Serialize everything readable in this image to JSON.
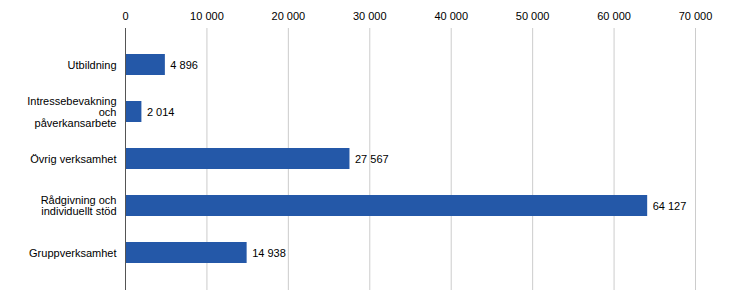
{
  "chart_data": {
    "type": "bar",
    "orientation": "horizontal",
    "categories": [
      "Utbildning",
      "Intressebevakning\noch\npåverkansarbete",
      "Övrig verksamhet",
      "Rådgivning och\nindividuellt stöd",
      "Gruppverksamhet"
    ],
    "values": [
      4896,
      2014,
      27567,
      64127,
      14938
    ],
    "value_labels": [
      "4 896",
      "2 014",
      "27 567",
      "64 127",
      "14 938"
    ],
    "data_labels": true,
    "color": "#2458a8",
    "xlim": [
      0,
      70000
    ],
    "xticks": [
      0,
      {
        "value": 10000,
        "label": "10 000"
      },
      {
        "value": 20000,
        "label": "20 000"
      },
      {
        "value": 30000,
        "label": "30 000"
      },
      {
        "value": 40000,
        "label": "40 000"
      },
      {
        "value": 50000,
        "label": "50 000"
      },
      {
        "value": 60000,
        "label": "60 000"
      },
      {
        "value": 70000,
        "label": "70 000"
      }
    ],
    "grid": true
  }
}
